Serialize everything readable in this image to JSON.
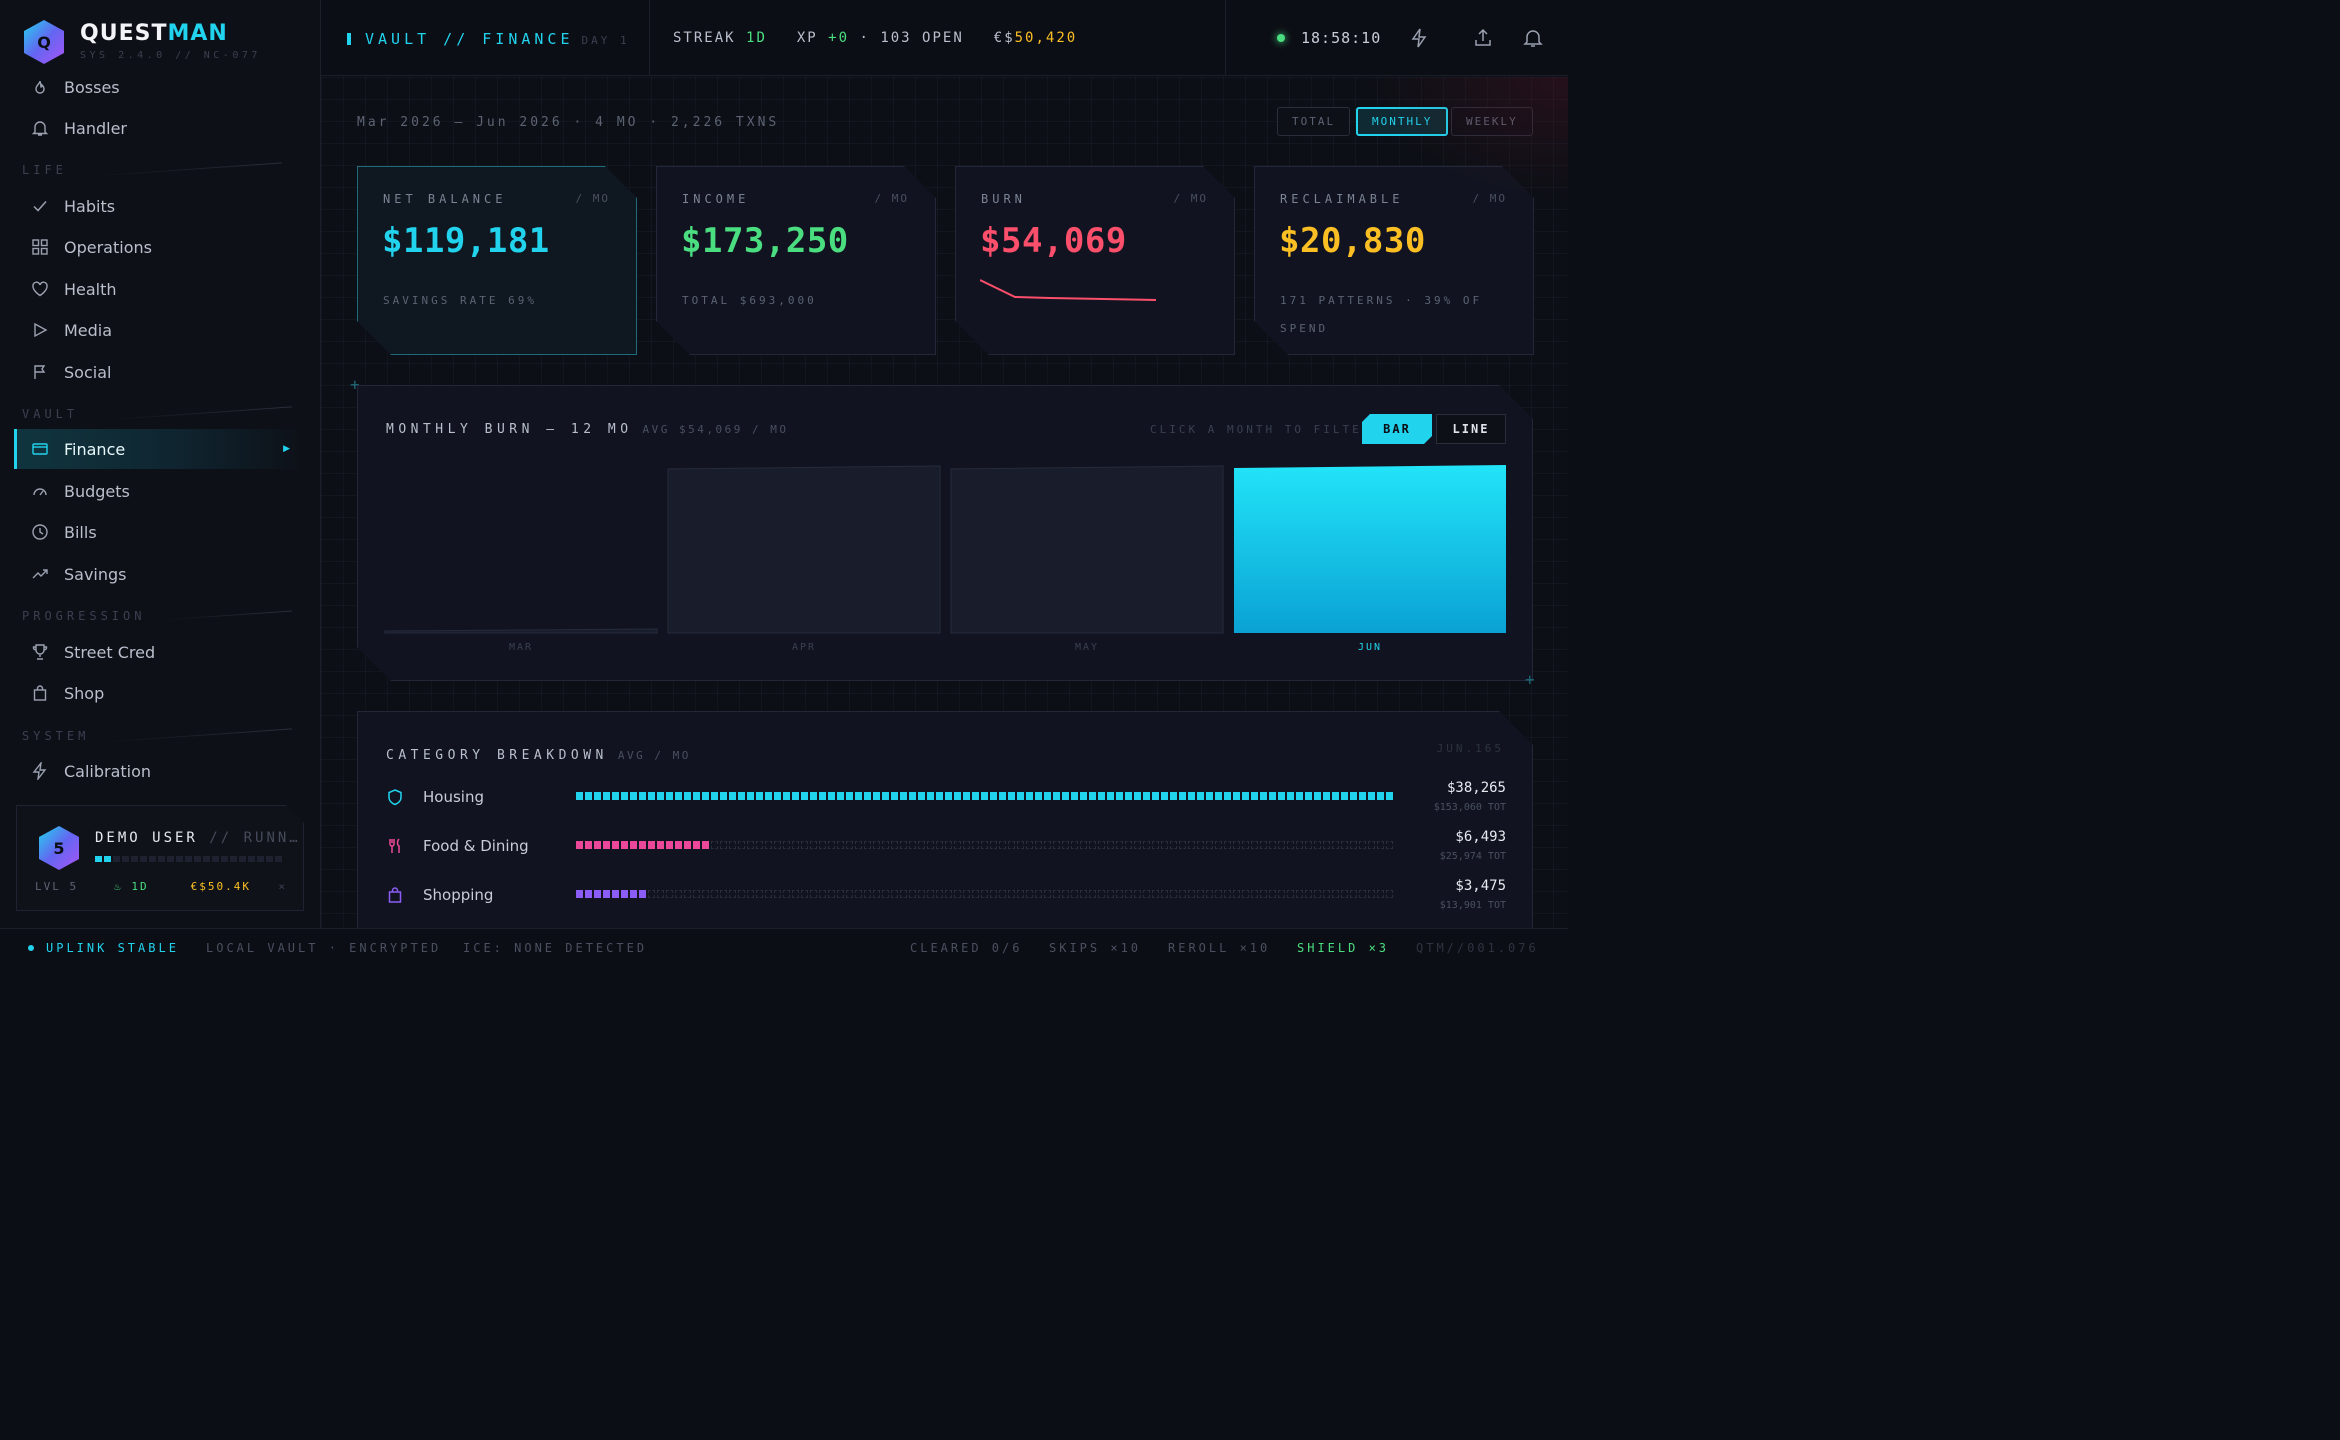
{
  "brand": {
    "name_a": "QUEST",
    "name_b": "MAN",
    "logo_letter": "Q",
    "sys": "SYS 2.4.0 // NC-077"
  },
  "sidebar": {
    "top_items": [
      {
        "label": "Bosses",
        "icon": "flame-icon"
      },
      {
        "label": "Handler",
        "icon": "bell-icon"
      }
    ],
    "sections": {
      "life": "LIFE",
      "vault": "VAULT",
      "progression": "PROGRESSION",
      "system": "SYSTEM"
    },
    "life_items": [
      "Habits",
      "Operations",
      "Health",
      "Media",
      "Social"
    ],
    "vault_items": [
      "Finance",
      "Budgets",
      "Bills",
      "Savings"
    ],
    "progression_items": [
      "Street Cred",
      "Shop"
    ],
    "system_items": [
      "Calibration"
    ],
    "active": "Finance"
  },
  "user": {
    "level_badge": "5",
    "name": "DEMO USER",
    "status": "// RUNN…",
    "level": "LVL 5",
    "streak": "1D",
    "coins": "€$50.4K",
    "close": "×"
  },
  "topbar": {
    "crumb": "VAULT // FINANCE",
    "day": "DAY 1",
    "streak_label": "STREAK",
    "streak_value": "1D",
    "xp_label": "XP",
    "xp_value": "+0",
    "open": "· 103 OPEN",
    "money_prefix": "€$",
    "money_value": "50,420",
    "clock": "18:58:10"
  },
  "main": {
    "range": "Mar 2026 – Jun 2026 · 4 MO · 2,226 TXNS",
    "views": [
      "TOTAL",
      "MONTHLY",
      "WEEKLY"
    ],
    "active_view": "MONTHLY"
  },
  "kpis": [
    {
      "label": "NET BALANCE",
      "unit": "/ MO",
      "value": "$119,181",
      "sub": "SAVINGS RATE 69%",
      "color": "#22d3ee"
    },
    {
      "label": "INCOME",
      "unit": "/ MO",
      "value": "$173,250",
      "sub": "TOTAL $693,000",
      "color": "#4ade80"
    },
    {
      "label": "BURN",
      "unit": "/ MO",
      "value": "$54,069",
      "sub": "",
      "color": "#fb4f6b"
    },
    {
      "label": "RECLAIMABLE",
      "unit": "/ MO",
      "value": "$20,830",
      "sub": "171 PATTERNS · 39% OF SPEND",
      "color": "#fbbf24"
    }
  ],
  "burn_chart": {
    "title": "MONTHLY BURN — 12 MO",
    "avg": "AVG $54,069 / MO",
    "hint": "CLICK A MONTH TO FILTER",
    "bar_label": "BAR",
    "line_label": "LINE"
  },
  "chart_data": {
    "type": "bar",
    "categories": [
      "MAR",
      "APR",
      "MAY",
      "JUN"
    ],
    "values": [
      4,
      167,
      167,
      168
    ],
    "ylim": [
      0,
      168
    ],
    "active": "JUN",
    "accent": "#22d3ee"
  },
  "categories": {
    "title": "CATEGORY BREAKDOWN",
    "sub": "AVG / MO",
    "corner": "JUN.165",
    "rows": [
      {
        "name": "Housing",
        "icon": "shield-icon",
        "amount": "$38,265",
        "total": "$153,060 TOT",
        "fill": 1.0,
        "color": "#22d3ee"
      },
      {
        "name": "Food & Dining",
        "icon": "utensils-icon",
        "amount": "$6,493",
        "total": "$25,974 TOT",
        "fill": 0.17,
        "color": "#ec4899"
      },
      {
        "name": "Shopping",
        "icon": "bag-icon",
        "amount": "$3,475",
        "total": "$13,901 TOT",
        "fill": 0.09,
        "color": "#8b5cf6"
      }
    ]
  },
  "status": {
    "uplink": "UPLINK STABLE",
    "vault": "LOCAL VAULT · ENCRYPTED",
    "ice": "ICE: NONE DETECTED",
    "cleared": "CLEARED 0/6",
    "skips": "SKIPS ×10",
    "reroll": "REROLL ×10",
    "shield": "SHIELD ×3",
    "version": "QTM//001.076"
  }
}
